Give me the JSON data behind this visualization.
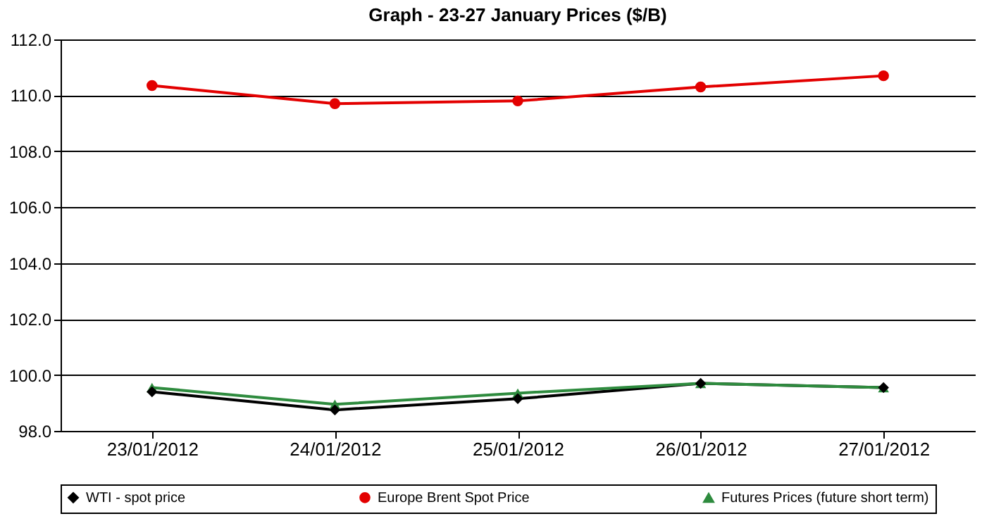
{
  "chart_data": {
    "type": "line",
    "title": "Graph -  23-27 January Prices ($/B)",
    "categories": [
      "23/01/2012",
      "24/01/2012",
      "25/01/2012",
      "26/01/2012",
      "27/01/2012"
    ],
    "series": [
      {
        "name": "WTI - spot price",
        "color": "#000000",
        "marker": "diamond",
        "values": [
          99.4,
          98.75,
          99.15,
          99.7,
          99.55
        ]
      },
      {
        "name": "Europe Brent Spot Price",
        "color": "#e30000",
        "marker": "circle",
        "values": [
          110.35,
          109.7,
          109.8,
          110.3,
          110.7
        ]
      },
      {
        "name": "Futures Prices (future short term)",
        "color": "#2e8b3e",
        "marker": "triangle",
        "values": [
          99.55,
          98.95,
          99.35,
          99.7,
          99.55
        ]
      }
    ],
    "ylim": [
      98,
      112
    ],
    "yticks": [
      {
        "value": 98,
        "label": "98.0"
      },
      {
        "value": 100,
        "label": "100.0"
      },
      {
        "value": 102,
        "label": "102.0"
      },
      {
        "value": 104,
        "label": "104.0"
      },
      {
        "value": 106,
        "label": "106.0"
      },
      {
        "value": 108,
        "label": "108.0"
      },
      {
        "value": 110,
        "label": "110.0"
      },
      {
        "value": 112,
        "label": "112.0"
      }
    ],
    "grid": "y",
    "legend": "bottom",
    "line_style": "solid"
  }
}
